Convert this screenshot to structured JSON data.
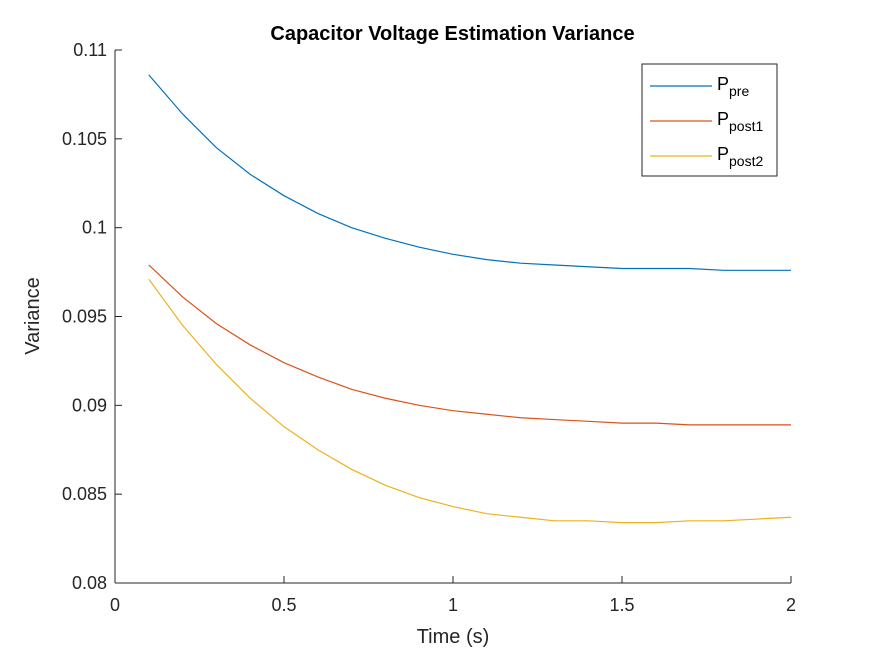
{
  "chart_data": {
    "type": "line",
    "title": "Capacitor Voltage Estimation Variance",
    "xlabel": "Time (s)",
    "ylabel": "Variance",
    "xlim": [
      0,
      2
    ],
    "ylim": [
      0.08,
      0.11
    ],
    "xticks": [
      0,
      0.5,
      1,
      1.5,
      2
    ],
    "xtick_labels": [
      "0",
      "0.5",
      "1",
      "1.5",
      "2"
    ],
    "yticks": [
      0.08,
      0.085,
      0.09,
      0.095,
      0.1,
      0.105,
      0.11
    ],
    "ytick_labels": [
      "0.08",
      "0.085",
      "0.09",
      "0.095",
      "0.1",
      "0.105",
      "0.11"
    ],
    "grid": false,
    "legend_position": "top-right",
    "x": [
      0.1,
      0.2,
      0.3,
      0.4,
      0.5,
      0.6,
      0.7,
      0.8,
      0.9,
      1.0,
      1.1,
      1.2,
      1.3,
      1.4,
      1.5,
      1.6,
      1.7,
      1.8,
      1.9,
      2.0
    ],
    "series": [
      {
        "name": "P",
        "subscript": "pre",
        "color": "#0072BD",
        "values": [
          0.1086,
          0.1064,
          0.1045,
          0.103,
          0.1018,
          0.1008,
          0.1,
          0.0994,
          0.0989,
          0.0985,
          0.0982,
          0.098,
          0.0979,
          0.0978,
          0.0977,
          0.0977,
          0.0977,
          0.0976,
          0.0976,
          0.0976
        ]
      },
      {
        "name": "P",
        "subscript": "post1",
        "color": "#D95319",
        "values": [
          0.0979,
          0.0961,
          0.0946,
          0.0934,
          0.0924,
          0.0916,
          0.0909,
          0.0904,
          0.09,
          0.0897,
          0.0895,
          0.0893,
          0.0892,
          0.0891,
          0.089,
          0.089,
          0.0889,
          0.0889,
          0.0889,
          0.0889
        ]
      },
      {
        "name": "P",
        "subscript": "post2",
        "color": "#EDB120",
        "values": [
          0.0971,
          0.0945,
          0.0923,
          0.0904,
          0.0888,
          0.0875,
          0.0864,
          0.0855,
          0.0848,
          0.0843,
          0.0839,
          0.0837,
          0.0835,
          0.0835,
          0.0834,
          0.0834,
          0.0835,
          0.0835,
          0.0836,
          0.0837
        ]
      }
    ]
  }
}
